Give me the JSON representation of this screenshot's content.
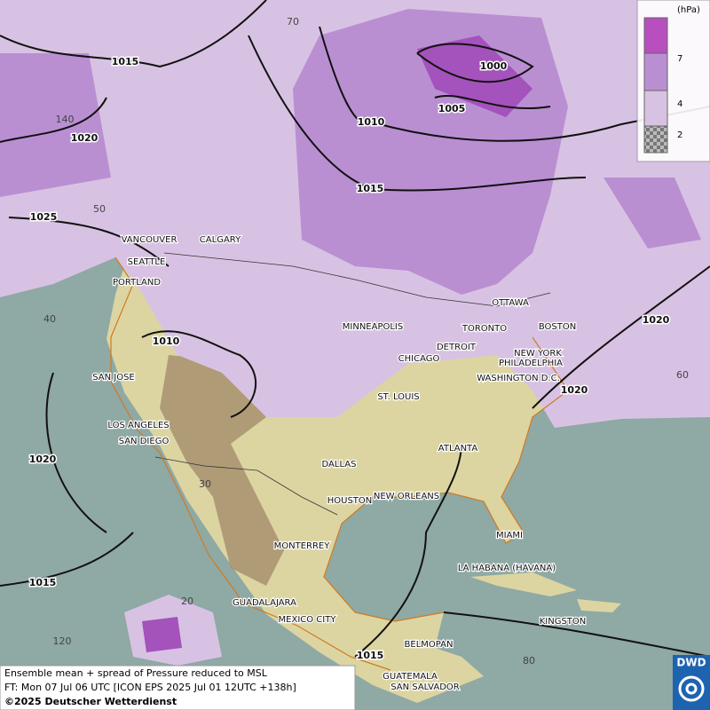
{
  "map": {
    "isobar_labels": [
      "1015",
      "1000",
      "1005",
      "1010",
      "1020",
      "1015",
      "1025",
      "1010",
      "1020",
      "1020",
      "1020",
      "1015",
      "1015"
    ],
    "graticule_labels": [
      "70",
      "140",
      "50",
      "40",
      "60",
      "30",
      "20",
      "120",
      "80"
    ],
    "cities": [
      "VANCOUVER",
      "CALGARY",
      "SEATTLE",
      "PORTLAND",
      "MINNEAPOLIS",
      "OTTAWA",
      "TORONTO",
      "BOSTON",
      "DETROIT",
      "CHICAGO",
      "NEW YORK",
      "PHILADELPHIA",
      "WASHINGTON D.C.",
      "SAN JOSE",
      "ST. LOUIS",
      "LOS ANGELES",
      "SAN DIEGO",
      "ATLANTA",
      "DALLAS",
      "HOUSTON",
      "NEW ORLEANS",
      "MIAMI",
      "MONTERREY",
      "LA HABANA (HAVANA)",
      "GUADALAJARA",
      "MEXICO CITY",
      "KINGSTON",
      "BELMOPAN",
      "GUATEMALA",
      "SAN SALVADOR"
    ]
  },
  "legend": {
    "unit": "(hPa)",
    "levels": [
      7,
      4,
      2
    ]
  },
  "footer": {
    "lines": [
      "Ensemble mean + spread of Pressure reduced to MSL",
      "FT: Mon 07 Jul 06 UTC [ICON EPS 2025 Jul 01 12UTC +138h]",
      "©2025 Deutscher Wetterdienst"
    ]
  },
  "logo": "DWD"
}
